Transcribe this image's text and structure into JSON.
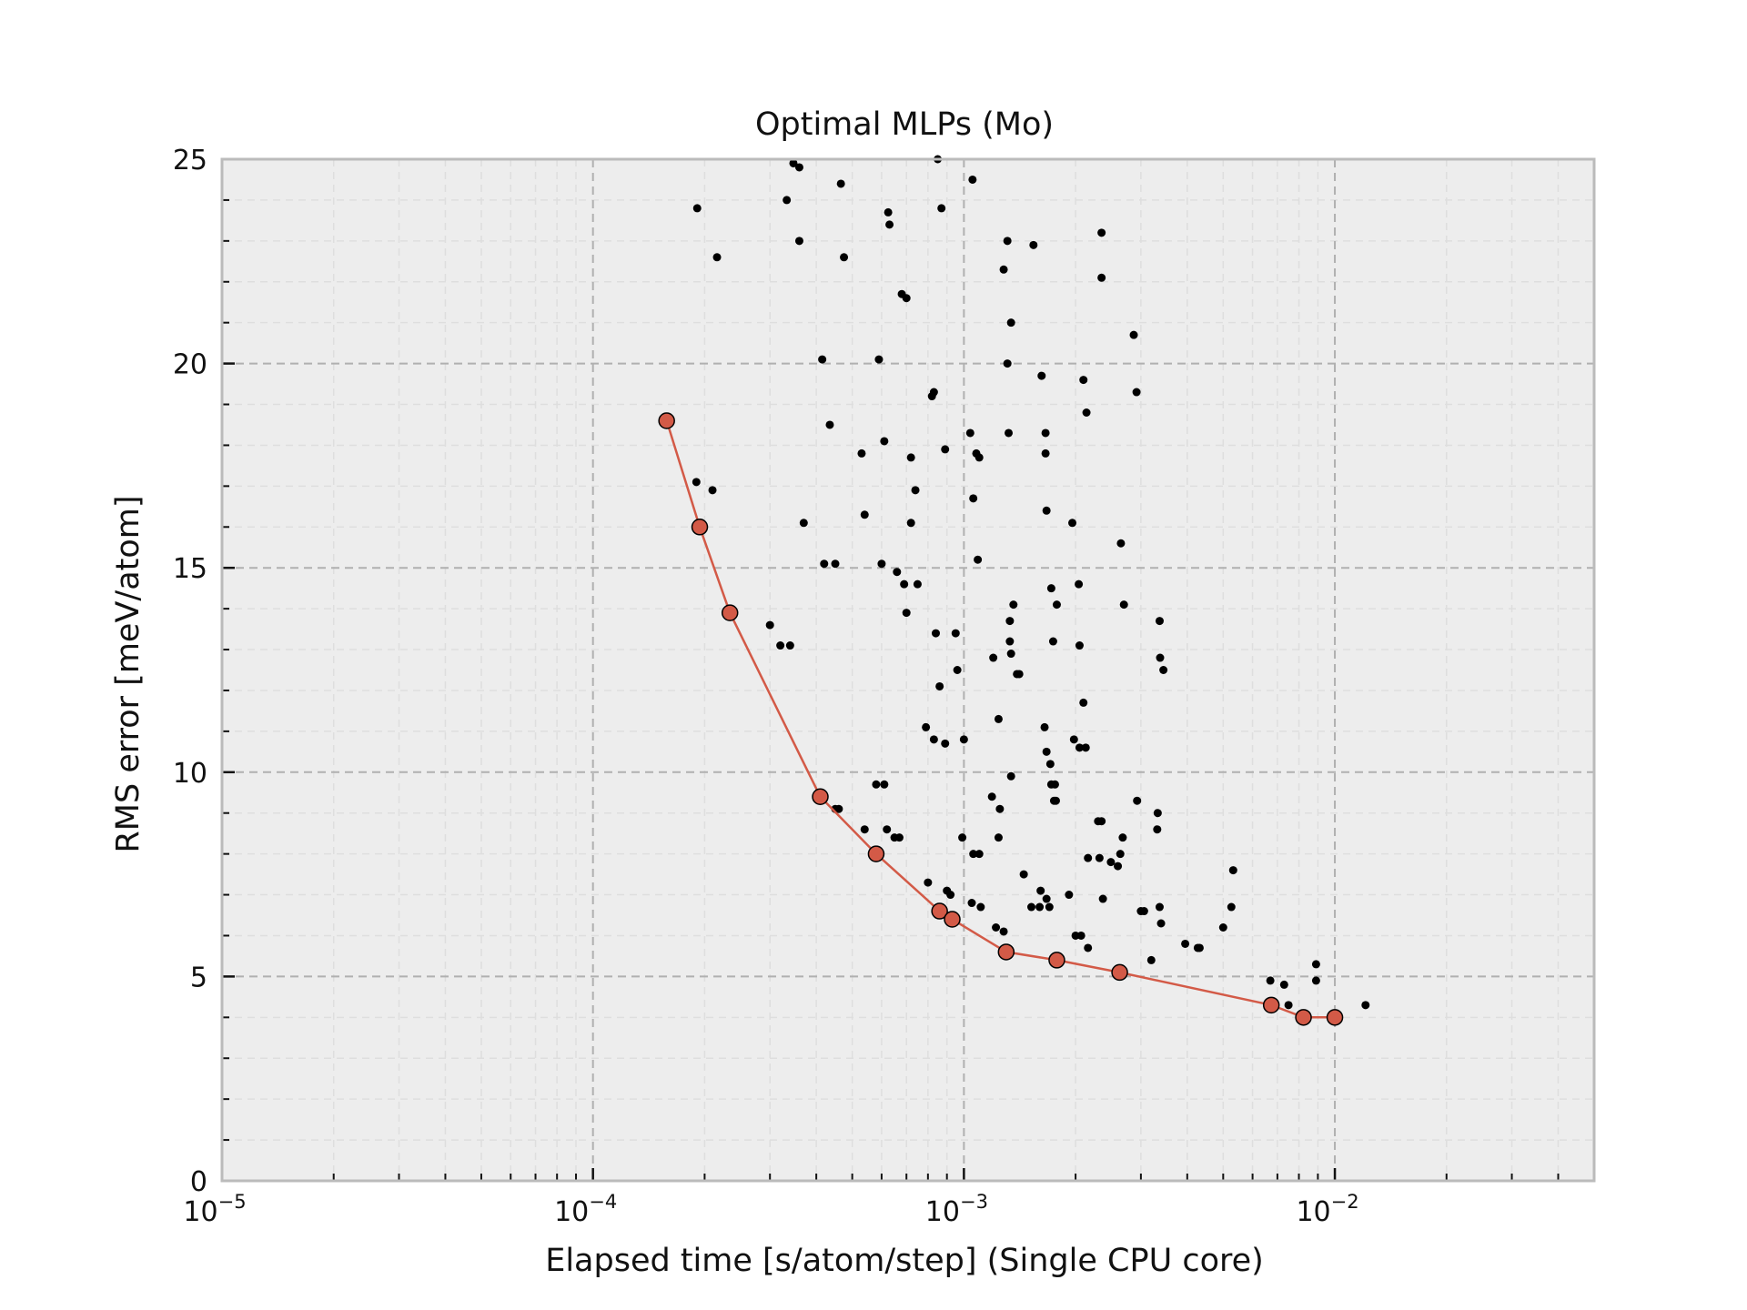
{
  "chart_data": {
    "type": "scatter",
    "title": "Optimal MLPs (Mo)",
    "xlabel": "Elapsed time [s/atom/step] (Single CPU core)",
    "ylabel": "RMS error [meV/atom]",
    "xscale": "log",
    "xlim": [
      1e-05,
      0.05
    ],
    "ylim": [
      0,
      25
    ],
    "x_ticks": [
      {
        "base": "10",
        "exp": "−5",
        "value": 1e-05
      },
      {
        "base": "10",
        "exp": "−4",
        "value": 0.0001
      },
      {
        "base": "10",
        "exp": "−3",
        "value": 0.001
      },
      {
        "base": "10",
        "exp": "−2",
        "value": 0.01
      }
    ],
    "y_ticks": [
      "0",
      "5",
      "10",
      "15",
      "20",
      "25"
    ],
    "grid": true,
    "colors": {
      "background": "#ededed",
      "frame": "#bbbbbb",
      "grid_major": "#b0b0b0",
      "grid_minor": "#dedede",
      "front": "#d35a47",
      "points": "#000000"
    },
    "series": [
      {
        "role": "all-candidates",
        "style": "scatter-small-black",
        "points": [
          [
            0.000191,
            23.8
          ],
          [
            0.000216,
            22.6
          ],
          [
            0.000333,
            24.0
          ],
          [
            0.000347,
            24.9
          ],
          [
            0.00036,
            24.8
          ],
          [
            0.00036,
            23.0
          ],
          [
            0.000466,
            24.4
          ],
          [
            0.000475,
            22.6
          ],
          [
            0.000625,
            23.7
          ],
          [
            0.00063,
            23.4
          ],
          [
            0.00068,
            21.7
          ],
          [
            0.0007,
            21.6
          ],
          [
            0.00085,
            25.0
          ],
          [
            0.00087,
            23.8
          ],
          [
            0.001055,
            24.5
          ],
          [
            0.00128,
            22.3
          ],
          [
            0.00131,
            23.0
          ],
          [
            0.00154,
            22.9
          ],
          [
            0.00235,
            23.2
          ],
          [
            0.00235,
            22.1
          ],
          [
            0.00287,
            20.7
          ],
          [
            0.00134,
            21.0
          ],
          [
            0.000415,
            20.1
          ],
          [
            0.00059,
            20.1
          ],
          [
            0.00082,
            19.2
          ],
          [
            0.00083,
            19.3
          ],
          [
            0.00131,
            20.0
          ],
          [
            0.00162,
            19.7
          ],
          [
            0.0021,
            19.6
          ],
          [
            0.00292,
            19.3
          ],
          [
            0.000435,
            18.5
          ],
          [
            0.00061,
            18.1
          ],
          [
            0.00053,
            17.8
          ],
          [
            0.00072,
            17.7
          ],
          [
            0.00089,
            17.9
          ],
          [
            0.00104,
            18.3
          ],
          [
            0.00108,
            17.8
          ],
          [
            0.0011,
            17.7
          ],
          [
            0.00132,
            18.3
          ],
          [
            0.00166,
            18.3
          ],
          [
            0.00166,
            17.8
          ],
          [
            0.00214,
            18.8
          ],
          [
            0.00019,
            17.1
          ],
          [
            0.00021,
            16.9
          ],
          [
            0.00037,
            16.1
          ],
          [
            0.00054,
            16.3
          ],
          [
            0.00074,
            16.9
          ],
          [
            0.00072,
            16.1
          ],
          [
            0.00106,
            16.7
          ],
          [
            0.00167,
            16.4
          ],
          [
            0.00196,
            16.1
          ],
          [
            0.00265,
            15.6
          ],
          [
            0.00042,
            15.1
          ],
          [
            0.00045,
            15.1
          ],
          [
            0.0006,
            15.1
          ],
          [
            0.00066,
            14.9
          ],
          [
            0.00069,
            14.6
          ],
          [
            0.00075,
            14.6
          ],
          [
            0.00109,
            15.2
          ],
          [
            0.00136,
            14.1
          ],
          [
            0.00172,
            14.5
          ],
          [
            0.00178,
            14.1
          ],
          [
            0.00204,
            14.6
          ],
          [
            0.0027,
            14.1
          ],
          [
            0.0003,
            13.6
          ],
          [
            0.00032,
            13.1
          ],
          [
            0.00034,
            13.1
          ],
          [
            0.0007,
            13.9
          ],
          [
            0.00084,
            13.4
          ],
          [
            0.00095,
            13.4
          ],
          [
            0.00133,
            13.7
          ],
          [
            0.00133,
            13.2
          ],
          [
            0.00134,
            12.9
          ],
          [
            0.00139,
            12.4
          ],
          [
            0.00141,
            12.4
          ],
          [
            0.00174,
            13.2
          ],
          [
            0.00205,
            13.1
          ],
          [
            0.00337,
            13.7
          ],
          [
            0.00338,
            12.8
          ],
          [
            0.00345,
            12.5
          ],
          [
            0.00096,
            12.5
          ],
          [
            0.00086,
            12.1
          ],
          [
            0.0012,
            12.8
          ],
          [
            0.00079,
            11.1
          ],
          [
            0.00083,
            10.8
          ],
          [
            0.00089,
            10.7
          ],
          [
            0.001,
            10.8
          ],
          [
            0.00124,
            11.3
          ],
          [
            0.00165,
            11.1
          ],
          [
            0.00167,
            10.5
          ],
          [
            0.00171,
            10.2
          ],
          [
            0.00198,
            10.8
          ],
          [
            0.00205,
            10.6
          ],
          [
            0.0021,
            11.7
          ],
          [
            0.00213,
            10.6
          ],
          [
            0.00058,
            9.7
          ],
          [
            0.00061,
            9.7
          ],
          [
            0.00045,
            9.1
          ],
          [
            0.00046,
            9.1
          ],
          [
            0.00062,
            8.6
          ],
          [
            0.00065,
            8.4
          ],
          [
            0.00067,
            8.4
          ],
          [
            0.00054,
            8.6
          ],
          [
            0.00119,
            9.4
          ],
          [
            0.00125,
            9.1
          ],
          [
            0.00134,
            9.9
          ],
          [
            0.00172,
            9.7
          ],
          [
            0.00176,
            9.7
          ],
          [
            0.00175,
            9.3
          ],
          [
            0.00177,
            9.3
          ],
          [
            0.0023,
            8.8
          ],
          [
            0.00235,
            8.8
          ],
          [
            0.00264,
            8.0
          ],
          [
            0.00268,
            8.4
          ],
          [
            0.00293,
            9.3
          ],
          [
            0.00333,
            9.0
          ],
          [
            0.00332,
            8.6
          ],
          [
            0.00099,
            8.4
          ],
          [
            0.00106,
            8.0
          ],
          [
            0.0011,
            8.0
          ],
          [
            0.00124,
            8.4
          ],
          [
            0.00216,
            7.9
          ],
          [
            0.00232,
            7.9
          ],
          [
            0.00249,
            7.8
          ],
          [
            0.0026,
            7.7
          ],
          [
            0.00532,
            7.6
          ],
          [
            0.0008,
            7.3
          ],
          [
            0.0009,
            7.1
          ],
          [
            0.00092,
            7.0
          ],
          [
            0.00145,
            7.5
          ],
          [
            0.00161,
            7.1
          ],
          [
            0.00167,
            6.9
          ],
          [
            0.00192,
            7.0
          ],
          [
            0.00237,
            6.9
          ],
          [
            0.00105,
            6.8
          ],
          [
            0.00111,
            6.7
          ],
          [
            0.00152,
            6.7
          ],
          [
            0.0016,
            6.7
          ],
          [
            0.0017,
            6.7
          ],
          [
            0.002,
            6.0
          ],
          [
            0.00207,
            6.0
          ],
          [
            0.00216,
            5.7
          ],
          [
            0.003,
            6.6
          ],
          [
            0.00306,
            6.6
          ],
          [
            0.00337,
            6.7
          ],
          [
            0.0034,
            6.3
          ],
          [
            0.00395,
            5.8
          ],
          [
            0.00427,
            5.7
          ],
          [
            0.00432,
            5.7
          ],
          [
            0.005,
            6.2
          ],
          [
            0.00526,
            6.7
          ],
          [
            0.00122,
            6.2
          ],
          [
            0.00128,
            6.1
          ],
          [
            0.0032,
            5.4
          ],
          [
            0.0067,
            4.9
          ],
          [
            0.0073,
            4.8
          ],
          [
            0.0075,
            4.3
          ],
          [
            0.0089,
            5.3
          ],
          [
            0.0089,
            4.9
          ],
          [
            0.0121,
            4.3
          ]
        ]
      },
      {
        "role": "pareto-front",
        "style": "line-with-markers",
        "points": [
          [
            0.000158,
            18.6
          ],
          [
            0.000194,
            16.0
          ],
          [
            0.000234,
            13.9
          ],
          [
            0.00041,
            9.4
          ],
          [
            0.00058,
            8.0
          ],
          [
            0.00086,
            6.6
          ],
          [
            0.00093,
            6.4
          ],
          [
            0.0013,
            5.6
          ],
          [
            0.00178,
            5.4
          ],
          [
            0.00263,
            5.1
          ],
          [
            0.00674,
            4.3
          ],
          [
            0.00823,
            4.0
          ],
          [
            0.01,
            4.0
          ]
        ]
      }
    ]
  }
}
